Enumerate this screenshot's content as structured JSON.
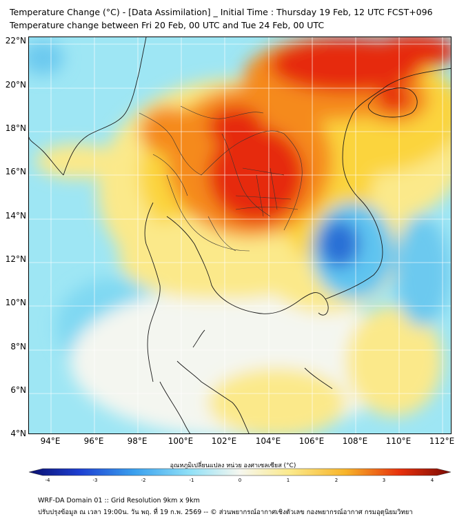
{
  "header": {
    "title_line1": "Temperature Change (°C) - [Data Assimilation] _ Initial Time : Thursday 19 Feb, 12 UTC FCST+096",
    "title_line2": "Temperature change between Fri 20 Feb, 00 UTC and Tue 24 Feb, 00 UTC"
  },
  "map": {
    "lat_ticks": [
      "22°N",
      "20°N",
      "18°N",
      "16°N",
      "14°N",
      "12°N",
      "10°N",
      "8°N",
      "6°N",
      "4°N"
    ],
    "lon_ticks": [
      "94°E",
      "96°E",
      "98°E",
      "100°E",
      "102°E",
      "104°E",
      "106°E",
      "108°E",
      "110°E",
      "112°E"
    ],
    "colors": {
      "background_field": "#9ee6f4",
      "cold_strong": "#2a6fd6",
      "cold": "#5ec4f0",
      "neutral": "#f4f6f0",
      "warm_light": "#fbe98a",
      "warm": "#fbd43e",
      "hot": "#f58a1a",
      "very_hot": "#e62a0c"
    }
  },
  "colorbar": {
    "label": "อุณหภูมิเปลี่ยนแปลง หน่วย องศาเซลเซียส (°C)",
    "ticks": [
      "-4",
      "-3",
      "-2",
      "-1",
      "0",
      "1",
      "2",
      "3",
      "4"
    ],
    "range": [
      -4,
      4
    ]
  },
  "footer": {
    "line1": "WRF-DA Domain 01 :: Grid Resolution 9km x 9km",
    "line2": "ปรับปรุงข้อมูล ณ เวลา 19:00น. วัน พฤ. ที่ 19 ก.พ. 2569 -- © ส่วนพยากรณ์อากาศเชิงตัวเลข กองพยากรณ์อากาศ กรมอุตุนิยมวิทยา"
  }
}
